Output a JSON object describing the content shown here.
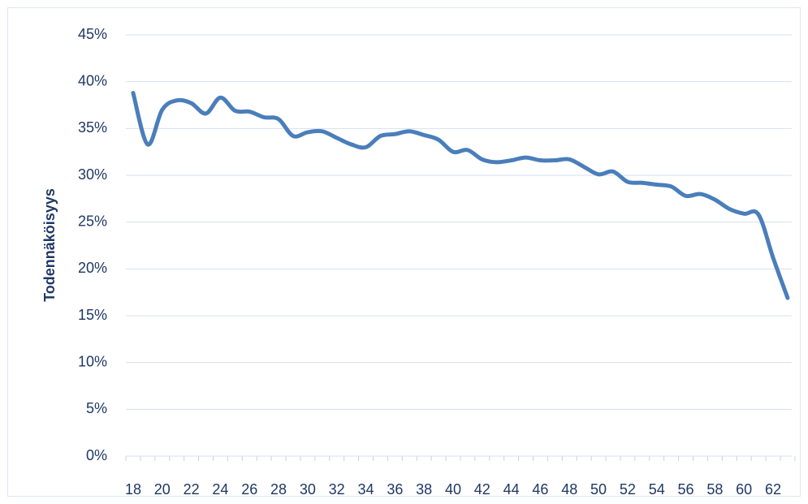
{
  "chart_data": {
    "type": "line",
    "y_label": "Todennäköisyys",
    "categories": [
      "18",
      null,
      "20",
      null,
      "22",
      null,
      "24",
      null,
      "26",
      null,
      "28",
      null,
      "30",
      null,
      "32",
      null,
      "34",
      null,
      "36",
      null,
      "38",
      null,
      "40",
      null,
      "42",
      null,
      "44",
      null,
      "46",
      null,
      "48",
      null,
      "50",
      null,
      "52",
      null,
      "54",
      null,
      "56",
      null,
      "58",
      null,
      "60",
      null,
      "62",
      null
    ],
    "series": [
      {
        "color": "#4a7ebb",
        "values": [
          38.8,
          33.3,
          37.0,
          38.0,
          37.7,
          36.6,
          38.3,
          36.9,
          36.8,
          36.2,
          36.0,
          34.2,
          34.6,
          34.7,
          34.0,
          33.3,
          33.0,
          34.2,
          34.4,
          34.7,
          34.3,
          33.8,
          32.5,
          32.7,
          31.7,
          31.4,
          31.6,
          31.9,
          31.6,
          31.6,
          31.7,
          30.9,
          30.1,
          30.4,
          29.3,
          29.2,
          29.0,
          28.8,
          27.8,
          28.0,
          27.4,
          26.4,
          25.9,
          25.8,
          21.2,
          16.9
        ]
      }
    ],
    "ylim": [
      0,
      45
    ],
    "yticks": [
      {
        "value": 0,
        "label": "0%"
      },
      {
        "value": 5,
        "label": "5%"
      },
      {
        "value": 10,
        "label": "10%"
      },
      {
        "value": 15,
        "label": "15%"
      },
      {
        "value": 20,
        "label": "20%"
      },
      {
        "value": 25,
        "label": "25%"
      },
      {
        "value": 30,
        "label": "30%"
      },
      {
        "value": 35,
        "label": "35%"
      },
      {
        "value": 40,
        "label": "40%"
      },
      {
        "value": 45,
        "label": "45%"
      }
    ],
    "grid": true
  }
}
